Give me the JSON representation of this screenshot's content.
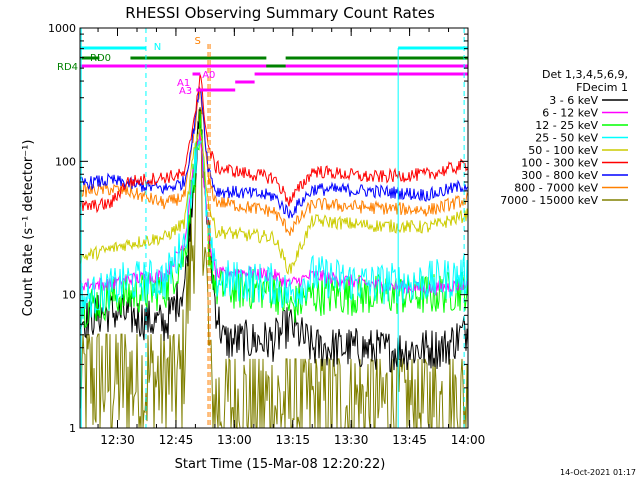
{
  "chart_data": {
    "type": "line",
    "title": "RHESSI Observing Summary Count Rates",
    "xlabel": "Start Time (15-Mar-08 12:20:22)",
    "ylabel": "Count Rate (s⁻¹ detector⁻¹)",
    "timestamp": "14-Oct-2021 01:17",
    "x_ticks": [
      "12:30",
      "12:45",
      "13:00",
      "13:15",
      "13:30",
      "13:45",
      "14:00"
    ],
    "y_ticks": [
      "1",
      "10",
      "100",
      "1000"
    ],
    "xlim": [
      "12:20:22",
      "14:00:00"
    ],
    "ylim": [
      1,
      1000
    ],
    "y_scale": "log",
    "legend_header": [
      "Det 1,3,4,5,6,9,",
      "FDecim 1"
    ],
    "legend_position": "right",
    "series": [
      {
        "name": "3 - 6 keV",
        "color": "#000000",
        "base": [
          [
            0,
            6.5
          ],
          [
            8,
            7.5
          ],
          [
            22,
            6
          ],
          [
            27,
            12
          ],
          [
            29,
            60
          ],
          [
            31,
            200
          ],
          [
            33,
            30
          ],
          [
            35,
            8
          ],
          [
            37,
            4.5
          ],
          [
            50,
            4.5
          ],
          [
            54,
            6
          ],
          [
            60,
            4
          ],
          [
            70,
            4
          ],
          [
            80,
            3.8
          ],
          [
            94,
            4
          ],
          [
            100,
            5.5
          ]
        ]
      },
      {
        "name": "6 - 12 keV",
        "color": "#ff00ff",
        "base": [
          [
            0,
            12
          ],
          [
            8,
            12
          ],
          [
            12,
            13
          ],
          [
            22,
            14
          ],
          [
            27,
            25
          ],
          [
            29,
            80
          ],
          [
            31,
            160
          ],
          [
            33,
            30
          ],
          [
            35,
            14
          ],
          [
            40,
            15
          ],
          [
            50,
            14
          ],
          [
            54,
            12
          ],
          [
            60,
            14
          ],
          [
            75,
            12
          ],
          [
            90,
            11
          ],
          [
            100,
            12
          ]
        ]
      },
      {
        "name": "12 - 25 keV",
        "color": "#00ff00",
        "base": [
          [
            0,
            8
          ],
          [
            8,
            9.5
          ],
          [
            12,
            10
          ],
          [
            22,
            11
          ],
          [
            27,
            20
          ],
          [
            29,
            70
          ],
          [
            31,
            170
          ],
          [
            33,
            25
          ],
          [
            35,
            11
          ],
          [
            50,
            11
          ],
          [
            54,
            8
          ],
          [
            60,
            10
          ],
          [
            75,
            10
          ],
          [
            90,
            10
          ],
          [
            100,
            11
          ]
        ]
      },
      {
        "name": "25 - 50 keV",
        "color": "#00ffff",
        "base": [
          [
            0,
            9
          ],
          [
            8,
            11
          ],
          [
            12,
            12.5
          ],
          [
            22,
            13
          ],
          [
            27,
            25
          ],
          [
            29,
            80
          ],
          [
            31,
            180
          ],
          [
            33,
            30
          ],
          [
            35,
            13
          ],
          [
            50,
            12
          ],
          [
            54,
            10
          ],
          [
            60,
            14
          ],
          [
            75,
            12
          ],
          [
            90,
            12.5
          ],
          [
            100,
            14
          ]
        ]
      },
      {
        "name": "50 - 100 keV",
        "color": "#cccc00",
        "base": [
          [
            0,
            19
          ],
          [
            8,
            22
          ],
          [
            12,
            24
          ],
          [
            22,
            27
          ],
          [
            27,
            35
          ],
          [
            29,
            100
          ],
          [
            31,
            190
          ],
          [
            33,
            50
          ],
          [
            35,
            30
          ],
          [
            42,
            28
          ],
          [
            50,
            27
          ],
          [
            54,
            15
          ],
          [
            60,
            36
          ],
          [
            75,
            33
          ],
          [
            90,
            32
          ],
          [
            100,
            40
          ]
        ]
      },
      {
        "name": "100 - 300 keV",
        "color": "#ff0000",
        "base": [
          [
            0,
            45
          ],
          [
            8,
            48
          ],
          [
            12,
            70
          ],
          [
            22,
            76
          ],
          [
            27,
            80
          ],
          [
            29,
            180
          ],
          [
            31,
            440
          ],
          [
            33,
            130
          ],
          [
            35,
            90
          ],
          [
            42,
            82
          ],
          [
            50,
            75
          ],
          [
            54,
            50
          ],
          [
            60,
            85
          ],
          [
            75,
            76
          ],
          [
            90,
            80
          ],
          [
            100,
            95
          ]
        ]
      },
      {
        "name": "300 - 800 keV",
        "color": "#0000ff",
        "base": [
          [
            0,
            68
          ],
          [
            8,
            72
          ],
          [
            12,
            68
          ],
          [
            22,
            62
          ],
          [
            27,
            70
          ],
          [
            29,
            150
          ],
          [
            31,
            390
          ],
          [
            33,
            90
          ],
          [
            35,
            60
          ],
          [
            42,
            58
          ],
          [
            50,
            55
          ],
          [
            54,
            40
          ],
          [
            60,
            62
          ],
          [
            75,
            60
          ],
          [
            90,
            56
          ],
          [
            100,
            67
          ]
        ]
      },
      {
        "name": "800 - 7000 keV",
        "color": "#ff8000",
        "base": [
          [
            0,
            60
          ],
          [
            8,
            62
          ],
          [
            12,
            60
          ],
          [
            22,
            48
          ],
          [
            27,
            55
          ],
          [
            29,
            130
          ],
          [
            31,
            360
          ],
          [
            33,
            75
          ],
          [
            35,
            50
          ],
          [
            42,
            46
          ],
          [
            50,
            42
          ],
          [
            54,
            30
          ],
          [
            60,
            48
          ],
          [
            75,
            45
          ],
          [
            90,
            43
          ],
          [
            100,
            52
          ]
        ]
      },
      {
        "name": "7000 - 15000 keV",
        "color": "#808000",
        "base": [
          [
            0,
            2.3
          ],
          [
            26,
            2.3
          ],
          [
            27,
            5
          ],
          [
            29,
            25
          ],
          [
            31,
            150
          ],
          [
            33,
            6
          ],
          [
            34,
            1.5
          ],
          [
            100,
            1.5
          ]
        ]
      }
    ],
    "state_bars": {
      "N": [
        [
          0,
          17
        ]
      ],
      "RD0": [
        [
          13,
          48
        ],
        [
          53,
          100
        ]
      ],
      "RD4": [
        [
          0,
          100
        ]
      ],
      "A0": [
        [
          29,
          31
        ]
      ]
    },
    "state_bar_labels": {
      "N": "N",
      "RD0": "RD0",
      "RD4": "RD4",
      "S": "S",
      "A0": "A0",
      "A1": "A1",
      "A3": "A3"
    },
    "vertical_markers": {
      "cyan_dashed_x": [
        17,
        99
      ],
      "cyan_solid_x": [
        82
      ],
      "orange_dashed_x": [
        33
      ]
    },
    "annotations": [
      "N",
      "S",
      "RD0",
      "RD4",
      "A0",
      "A1",
      "A3"
    ]
  }
}
